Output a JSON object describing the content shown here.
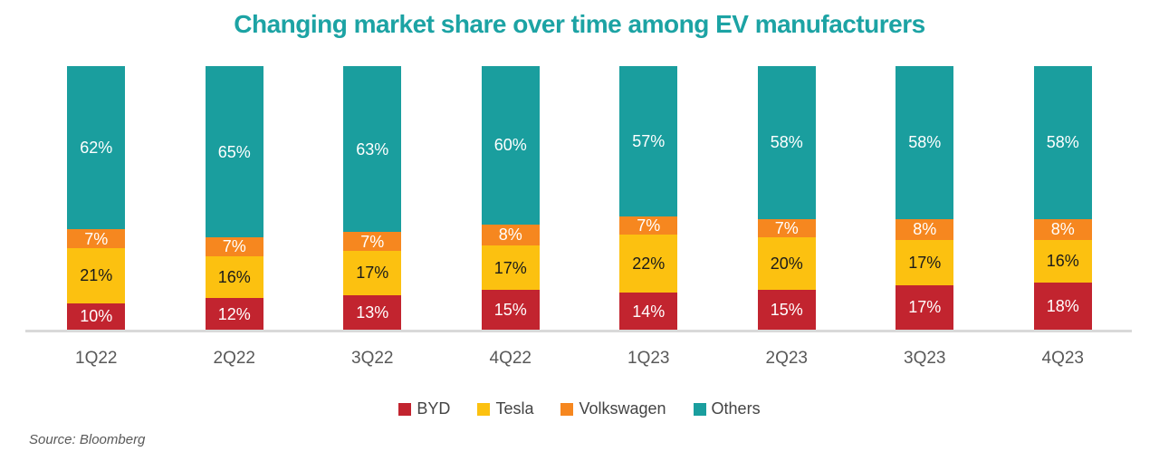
{
  "title": {
    "text": "Changing market share over time among EV manufacturers",
    "color": "#1CA3A4"
  },
  "source": {
    "text": "Source: Bloomberg"
  },
  "colors": {
    "accent_teal": "#1A9E9E",
    "axis_line": "#D9D9D9",
    "axis_label": "#595959",
    "legend_text": "#444444"
  },
  "chart_data": {
    "type": "bar",
    "stacked": true,
    "title": "Changing market share over time among EV manufacturers",
    "categories": [
      "1Q22",
      "2Q22",
      "3Q22",
      "4Q22",
      "1Q23",
      "2Q23",
      "3Q23",
      "4Q23"
    ],
    "series": [
      {
        "name": "BYD",
        "color": "#C2242F",
        "label_color": "#FFFFFF",
        "values": [
          10,
          12,
          13,
          15,
          14,
          15,
          17,
          18
        ]
      },
      {
        "name": "Tesla",
        "color": "#FCC110",
        "label_color": "#1A1A1A",
        "values": [
          21,
          16,
          17,
          17,
          22,
          20,
          17,
          16
        ]
      },
      {
        "name": "Volkswagen",
        "color": "#F6871F",
        "label_color": "#FFFFFF",
        "values": [
          7,
          7,
          7,
          8,
          7,
          7,
          8,
          8
        ]
      },
      {
        "name": "Others",
        "color": "#1A9E9E",
        "label_color": "#FFFFFF",
        "values": [
          62,
          65,
          63,
          60,
          57,
          58,
          58,
          58
        ]
      }
    ],
    "value_suffix": "%",
    "ylim": [
      0,
      100
    ],
    "grid": false,
    "y_axis_shown": false,
    "legend_position": "bottom"
  }
}
